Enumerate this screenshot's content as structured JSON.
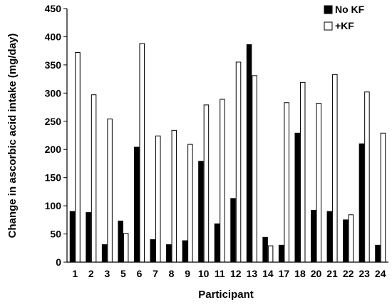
{
  "chart_data": {
    "type": "bar",
    "title": "",
    "xlabel": "Participant",
    "ylabel": "Change in ascorbic acid intake (mg/day)",
    "ylim": [
      0,
      450
    ],
    "yticks": [
      0,
      50,
      100,
      150,
      200,
      250,
      300,
      350,
      400,
      450
    ],
    "grid": false,
    "legend_position": "top-right",
    "categories": [
      "1",
      "2",
      "3",
      "5",
      "6",
      "7",
      "8",
      "9",
      "10",
      "11",
      "12",
      "13",
      "14",
      "17",
      "18",
      "20",
      "21",
      "22",
      "23",
      "24"
    ],
    "series": [
      {
        "name": "No KF",
        "color": "#000000",
        "values": [
          90,
          88,
          31,
          73,
          204,
          40,
          31,
          38,
          179,
          68,
          113,
          386,
          44,
          30,
          229,
          92,
          90,
          75,
          210,
          30
        ]
      },
      {
        "name": "+KF",
        "color": "#ffffff",
        "values": [
          372,
          297,
          254,
          51,
          388,
          224,
          234,
          209,
          279,
          289,
          355,
          331,
          29,
          283,
          319,
          282,
          333,
          84,
          302,
          229
        ]
      }
    ]
  }
}
